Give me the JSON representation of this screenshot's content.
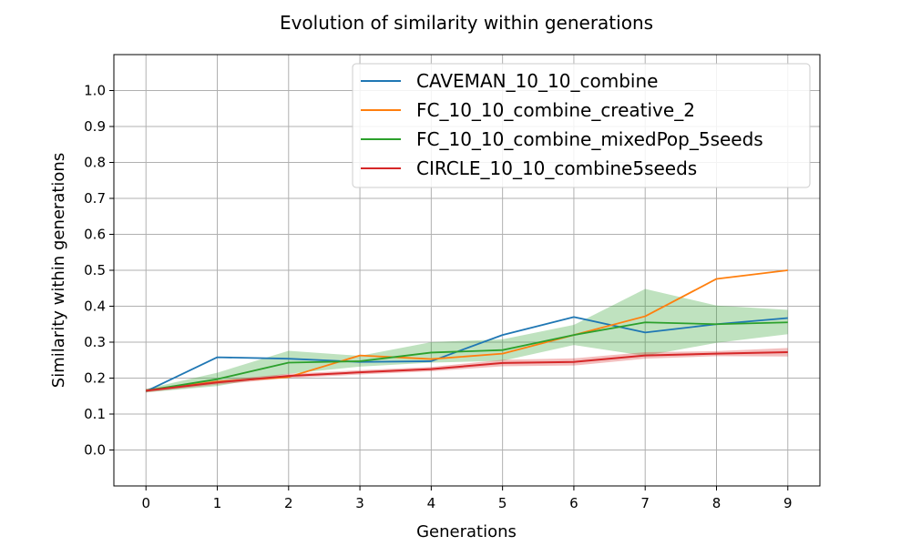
{
  "chart_data": {
    "type": "line",
    "title": "Evolution of similarity within generations",
    "xlabel": "Generations",
    "ylabel": "Similarity within generations",
    "x": [
      0,
      1,
      2,
      3,
      4,
      5,
      6,
      7,
      8,
      9
    ],
    "xlim": [
      -0.45,
      9.45
    ],
    "ylim": [
      -0.1,
      1.1
    ],
    "xticks": [
      "0",
      "1",
      "2",
      "3",
      "4",
      "5",
      "6",
      "7",
      "8",
      "9"
    ],
    "yticks": [
      "0.0",
      "0.1",
      "0.2",
      "0.3",
      "0.4",
      "0.5",
      "0.6",
      "0.7",
      "0.8",
      "0.9",
      "1.0"
    ],
    "ytick_values": [
      0.0,
      0.1,
      0.2,
      0.3,
      0.4,
      0.5,
      0.6,
      0.7,
      0.8,
      0.9,
      1.0
    ],
    "grid": true,
    "legend_position": "top-right",
    "series": [
      {
        "name": "CAVEMAN_10_10_combine",
        "color": "#1f77b4",
        "values": [
          0.163,
          0.258,
          0.254,
          0.245,
          0.247,
          0.32,
          0.37,
          0.327,
          0.35,
          0.367
        ]
      },
      {
        "name": "FC_10_10_combine_creative_2",
        "color": "#ff7f0e",
        "values": [
          0.165,
          0.19,
          0.203,
          0.263,
          0.253,
          0.268,
          0.32,
          0.372,
          0.476,
          0.5
        ]
      },
      {
        "name": "FC_10_10_combine_mixedPop_5seeds",
        "color": "#2ca02c",
        "values": [
          0.165,
          0.197,
          0.243,
          0.247,
          0.271,
          0.278,
          0.32,
          0.355,
          0.35,
          0.355
        ],
        "band_low": [
          0.16,
          0.178,
          0.212,
          0.232,
          0.243,
          0.248,
          0.292,
          0.262,
          0.298,
          0.322
        ],
        "band_high": [
          0.17,
          0.215,
          0.276,
          0.262,
          0.3,
          0.308,
          0.348,
          0.448,
          0.402,
          0.39
        ]
      },
      {
        "name": "CIRCLE_10_10_combine5seeds",
        "color": "#d62728",
        "values": [
          0.165,
          0.188,
          0.206,
          0.216,
          0.225,
          0.242,
          0.245,
          0.263,
          0.268,
          0.272
        ],
        "band_low": [
          0.16,
          0.182,
          0.2,
          0.21,
          0.219,
          0.233,
          0.235,
          0.254,
          0.261,
          0.26
        ],
        "band_high": [
          0.17,
          0.194,
          0.212,
          0.222,
          0.231,
          0.251,
          0.255,
          0.272,
          0.275,
          0.284
        ]
      }
    ]
  }
}
